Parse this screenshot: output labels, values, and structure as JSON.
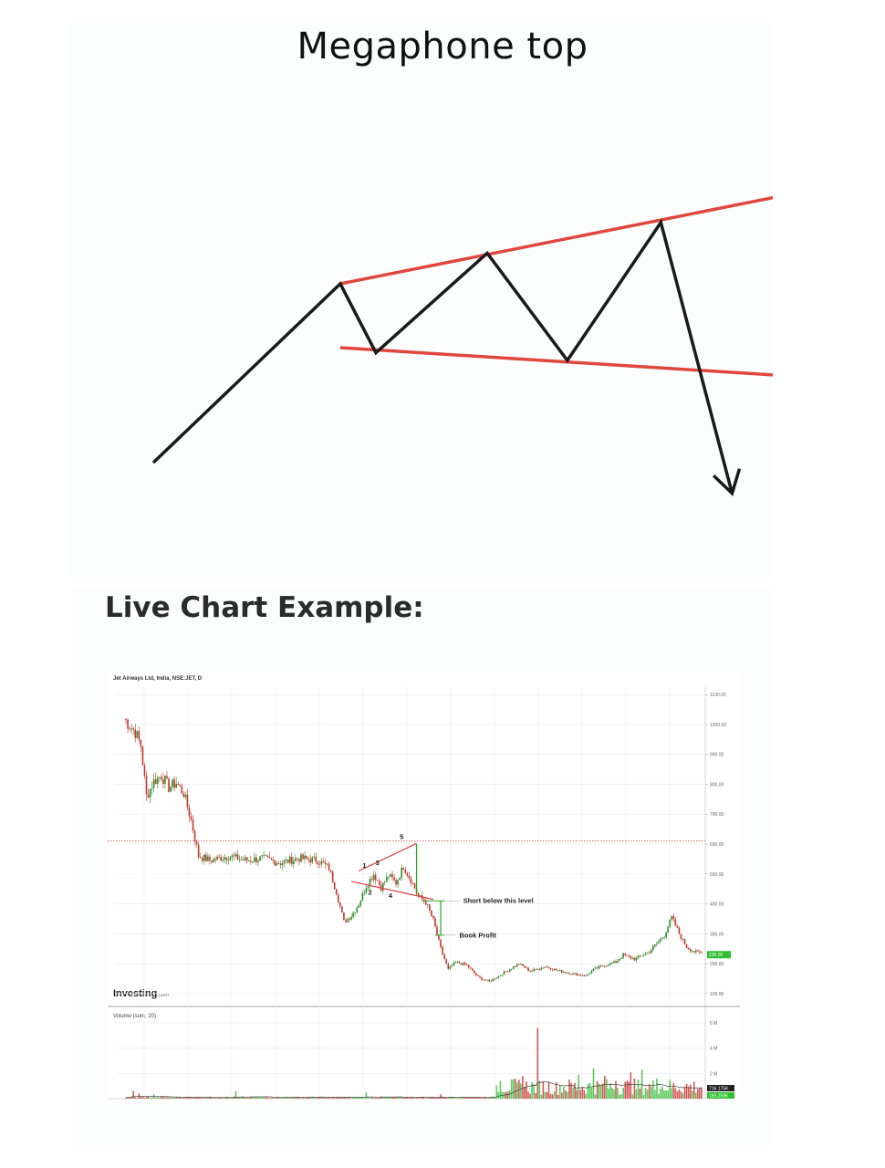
{
  "diagram": {
    "title": "Megaphone top",
    "line_color": "#1a1a1a",
    "trendline_color": "#e0463f",
    "pattern_points": [
      [
        0,
        0
      ],
      [
        4.2,
        7.0
      ],
      [
        5.0,
        4.3
      ],
      [
        7.5,
        8.2
      ],
      [
        9.3,
        4.0
      ],
      [
        11.4,
        9.4
      ],
      [
        13.0,
        -1.2
      ]
    ],
    "upper_trendline": [
      [
        4.2,
        7.0
      ],
      [
        14.0,
        10.4
      ]
    ],
    "lower_trendline": [
      [
        4.2,
        4.5
      ],
      [
        14.2,
        3.4
      ]
    ]
  },
  "section_heading": "Live Chart Example:",
  "chart_data": {
    "type": "candlestick",
    "title": "Jet Airways Ltd, India, NSE:JET, D",
    "brand": "Investing",
    "brand_suffix": ".com",
    "price_axis": {
      "ylim": [
        75,
        1125
      ],
      "ticks": [
        "1100.00",
        "1000.00",
        "900.00",
        "800.00",
        "700.00",
        "600.00",
        "500.00",
        "400.00",
        "300.00",
        "200.00",
        "100.00"
      ],
      "tick_values": [
        1100,
        1000,
        900,
        800,
        700,
        600,
        500,
        400,
        300,
        200,
        100
      ],
      "last_price_tag": "230.00",
      "tag_color": "#2fbf2f"
    },
    "price_series": {
      "up_color": "#2e8b2e",
      "down_color": "#c0392b",
      "anchors": [
        [
          0,
          1020
        ],
        [
          6,
          975
        ],
        [
          9,
          930
        ],
        [
          12,
          760
        ],
        [
          16,
          810
        ],
        [
          20,
          830
        ],
        [
          24,
          790
        ],
        [
          28,
          805
        ],
        [
          32,
          770
        ],
        [
          36,
          680
        ],
        [
          40,
          560
        ],
        [
          46,
          545
        ],
        [
          56,
          560
        ],
        [
          66,
          545
        ],
        [
          74,
          553
        ],
        [
          84,
          537
        ],
        [
          94,
          553
        ],
        [
          104,
          546
        ],
        [
          110,
          520
        ],
        [
          114,
          440
        ],
        [
          118,
          340
        ],
        [
          122,
          360
        ],
        [
          126,
          400
        ],
        [
          130,
          460
        ],
        [
          134,
          500
        ],
        [
          138,
          455
        ],
        [
          142,
          495
        ],
        [
          146,
          470
        ],
        [
          150,
          525
        ],
        [
          154,
          480
        ],
        [
          158,
          425
        ],
        [
          162,
          405
        ],
        [
          166,
          345
        ],
        [
          170,
          250
        ],
        [
          174,
          180
        ],
        [
          178,
          205
        ],
        [
          184,
          195
        ],
        [
          190,
          155
        ],
        [
          196,
          140
        ],
        [
          204,
          170
        ],
        [
          212,
          200
        ],
        [
          218,
          175
        ],
        [
          226,
          190
        ],
        [
          234,
          175
        ],
        [
          242,
          165
        ],
        [
          248,
          160
        ],
        [
          252,
          180
        ],
        [
          258,
          195
        ],
        [
          264,
          205
        ],
        [
          268,
          230
        ],
        [
          274,
          215
        ],
        [
          282,
          240
        ],
        [
          290,
          295
        ],
        [
          294,
          355
        ],
        [
          298,
          300
        ],
        [
          302,
          255
        ],
        [
          306,
          240
        ],
        [
          310,
          235
        ]
      ]
    },
    "resistance_line": {
      "value": 610,
      "color": "#d9534f"
    },
    "annotations": {
      "wave_labels": [
        "1",
        "2",
        "3",
        "4",
        "5"
      ],
      "short_label": "Short below this level",
      "book_label": "Book Profit",
      "short_level": 410,
      "target_level": 295,
      "pattern_color": "#e03c3c",
      "measure_color": "#22a822"
    },
    "volume": {
      "label": "Volume (sum, 20)",
      "ticks": [
        "6 M",
        "4 M",
        "2 M"
      ],
      "tick_values": [
        6,
        4,
        2
      ],
      "ylim": [
        0,
        7.0
      ],
      "tag1": "716.175K",
      "tag2": "169.259K",
      "tag1_color": "#222222",
      "tag2_color": "#2fbf2f",
      "spikes": [
        [
          5,
          0.6
        ],
        [
          8,
          0.4
        ],
        [
          16,
          0.35
        ],
        [
          60,
          0.6
        ],
        [
          130,
          0.5
        ],
        [
          170,
          0.35
        ],
        [
          202,
          1.4
        ],
        [
          214,
          1.8
        ],
        [
          222,
          5.6
        ],
        [
          232,
          1.3
        ],
        [
          244,
          1.9
        ],
        [
          252,
          2.4
        ],
        [
          258,
          1.8
        ],
        [
          264,
          1.4
        ],
        [
          272,
          2.1
        ],
        [
          278,
          2.3
        ],
        [
          286,
          1.6
        ]
      ],
      "ma_color": "#444444"
    }
  }
}
